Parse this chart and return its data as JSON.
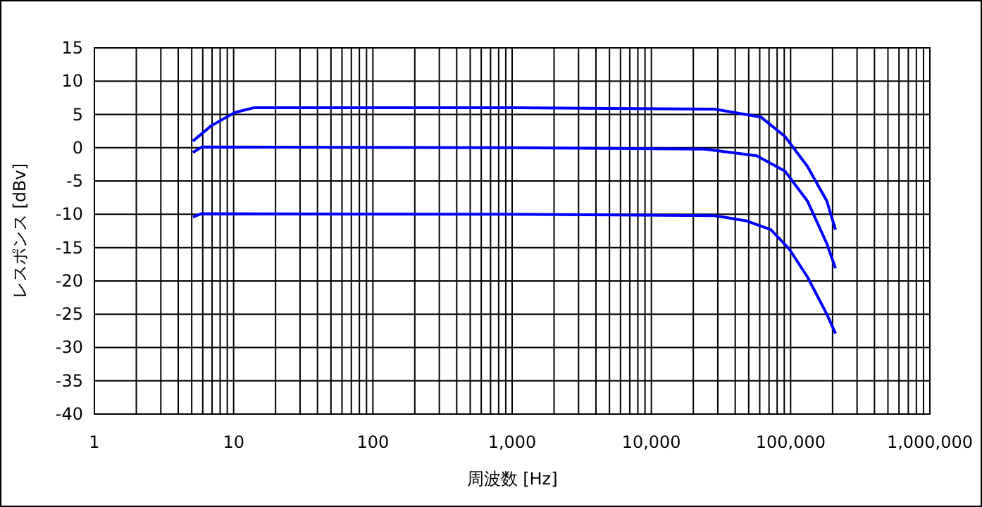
{
  "chart_data": {
    "type": "line",
    "xlabel": "周波数 [Hz]",
    "ylabel": "レスポンス [dBv]",
    "log": "x",
    "grid": true,
    "marker": "none",
    "line_style": "solid",
    "xlim": [
      1,
      1000000
    ],
    "xticks": [
      1,
      10,
      100,
      {
        "value": 1000,
        "label": "1,000"
      },
      {
        "value": 10000,
        "label": "10,000"
      },
      {
        "value": 100000,
        "label": "100,000"
      },
      {
        "value": 1000000,
        "label": "1,000,000"
      }
    ],
    "ylim": [
      -40,
      15
    ],
    "yticks": [
      -40,
      -35,
      -30,
      -25,
      -20,
      -15,
      -10,
      -5,
      0,
      5,
      10,
      15
    ],
    "series": [
      {
        "color": "#0000ff",
        "x": [
          5.1,
          6.9,
          10.2,
          13.9,
          1000,
          28400,
          61300,
          91000,
          132000,
          182000,
          210000
        ],
        "values": [
          1.0,
          3.3,
          5.3,
          6.0,
          6.0,
          5.8,
          4.6,
          1.7,
          -2.8,
          -8,
          -12.3
        ]
      },
      {
        "color": "#0000ff",
        "x": [
          5.1,
          5.9,
          1000,
          24000,
          57200,
          91000,
          132000,
          182000,
          210000
        ],
        "values": [
          -0.7,
          0.1,
          0,
          -0.2,
          -1.2,
          -3.5,
          -8,
          -14.4,
          -18.1
        ]
      },
      {
        "color": "#0000ff",
        "x": [
          5.1,
          5.9,
          1000,
          28400,
          48500,
          72100,
          97700,
          132000,
          182000,
          210000
        ],
        "values": [
          -10.4,
          -9.9,
          -10,
          -10.2,
          -11,
          -12.3,
          -15.2,
          -19.4,
          -25,
          -27.9
        ]
      }
    ]
  }
}
